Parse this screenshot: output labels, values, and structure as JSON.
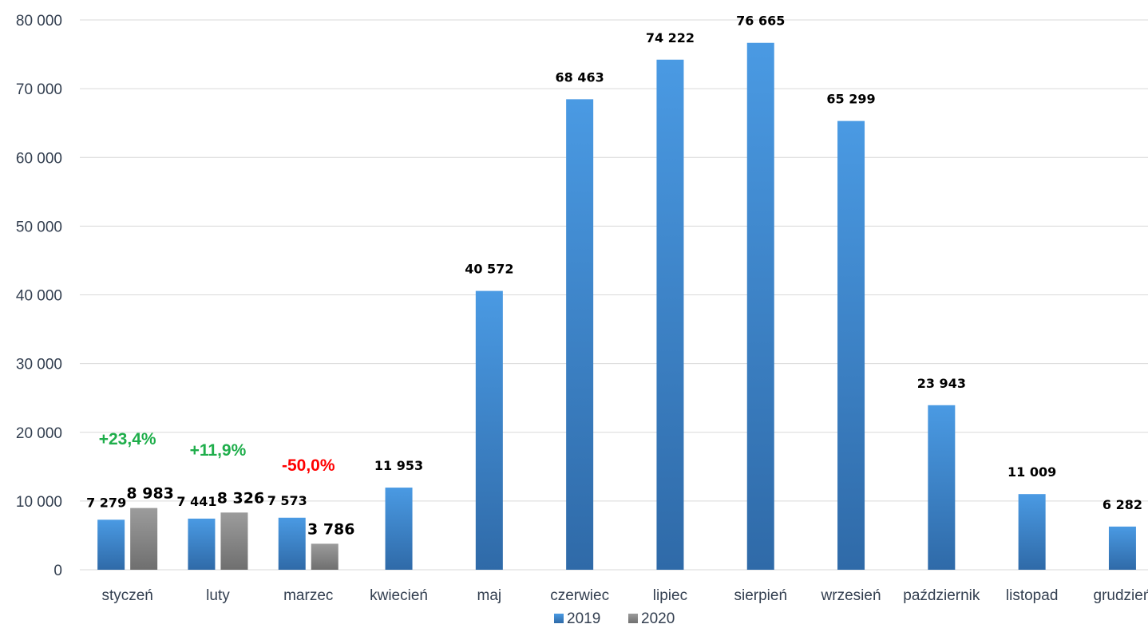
{
  "colors": {
    "series_2019": "#3f86cf",
    "series_2020": "#8a8a8a",
    "positive": "#1fae4b",
    "negative": "#ff0000",
    "grid": "#d9d9d9"
  },
  "chart_data": {
    "type": "bar",
    "title": "",
    "xlabel": "",
    "ylabel": "",
    "ylim": [
      0,
      80000
    ],
    "yticks": [
      0,
      10000,
      20000,
      30000,
      40000,
      50000,
      60000,
      70000,
      80000
    ],
    "ytick_labels": [
      "0",
      "10 000",
      "20 000",
      "30 000",
      "40 000",
      "50 000",
      "60 000",
      "70 000",
      "80 000"
    ],
    "grid": true,
    "legend_position": "bottom",
    "categories": [
      "styczeń",
      "luty",
      "marzec",
      "kwiecień",
      "maj",
      "czerwiec",
      "lipiec",
      "sierpień",
      "wrzesień",
      "październik",
      "listopad",
      "grudzień"
    ],
    "series": [
      {
        "name": "2019",
        "values": [
          7279,
          7441,
          7573,
          11953,
          40572,
          68463,
          74222,
          76665,
          65299,
          23943,
          11009,
          6282
        ],
        "labels": [
          "7 279",
          "7 441",
          "7 573",
          "11 953",
          "40 572",
          "68 463",
          "74 222",
          "76 665",
          "65 299",
          "23 943",
          "11 009",
          "6 282"
        ]
      },
      {
        "name": "2020",
        "values": [
          8983,
          8326,
          3786,
          null,
          null,
          null,
          null,
          null,
          null,
          null,
          null,
          null
        ],
        "labels": [
          "8 983",
          "8 326",
          "3 786",
          "",
          "",
          "",
          "",
          "",
          "",
          "",
          "",
          ""
        ]
      }
    ],
    "annotations": [
      {
        "category": "styczeń",
        "text": "+23,4%",
        "sign": "positive"
      },
      {
        "category": "luty",
        "text": "+11,9%",
        "sign": "positive"
      },
      {
        "category": "marzec",
        "text": "-50,0%",
        "sign": "negative"
      }
    ]
  }
}
